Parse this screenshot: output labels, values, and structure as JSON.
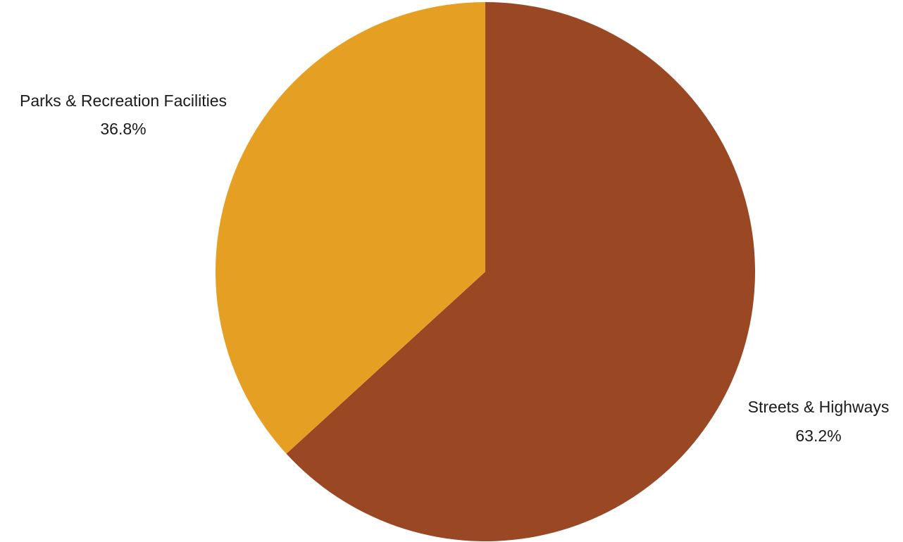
{
  "chart_data": {
    "type": "pie",
    "slices": [
      {
        "label": "Streets & Highways",
        "value": 63.2,
        "value_label": "63.2%",
        "color": "#9A4824"
      },
      {
        "label": "Parks & Recreation Facilities",
        "value": 36.8,
        "value_label": "36.8%",
        "color": "#E5A024"
      }
    ],
    "start_angle": "12 o'clock",
    "direction": "clockwise",
    "legend": "none",
    "labels_placement": "outside"
  }
}
